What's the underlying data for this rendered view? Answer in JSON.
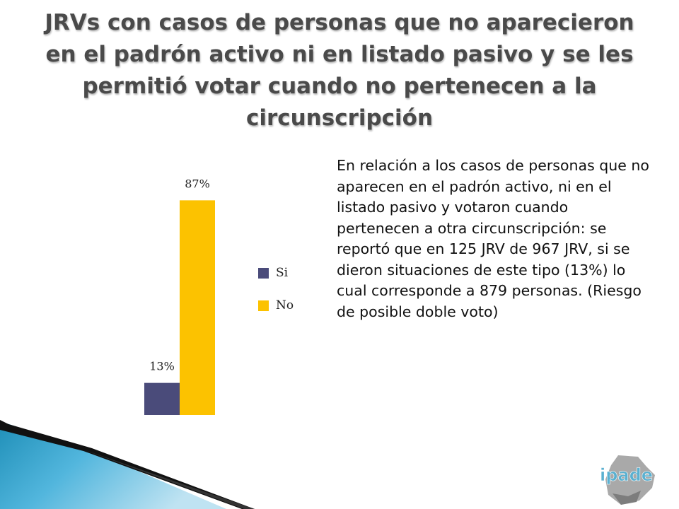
{
  "title": "JRVs con casos de personas que no aparecieron en el padrón activo ni en listado pasivo y se les permitió votar cuando no pertenecen a la circunscripción",
  "description": "En relación a los casos de personas que no aparecen en el padrón activo, ni en el listado pasivo y votaron cuando pertenecen a otra circunscripción: se reportó que en 125 JRV de 967 JRV, si se dieron situaciones de este tipo (13%) lo cual corresponde a 879 personas. (Riesgo de posible doble voto)",
  "logo": {
    "text": "ipade",
    "colors": {
      "accent": "#5ab0d0",
      "base": "#9a9a9a"
    }
  },
  "chart_data": {
    "type": "bar",
    "categories": [
      ""
    ],
    "series": [
      {
        "name": "Si",
        "values": [
          13
        ],
        "label": "13%",
        "color": "#4a4b7a"
      },
      {
        "name": "No",
        "values": [
          87
        ],
        "label": "87%",
        "color": "#fcc200"
      }
    ],
    "ylim": [
      0,
      100
    ],
    "legend": "right",
    "grid": false
  }
}
